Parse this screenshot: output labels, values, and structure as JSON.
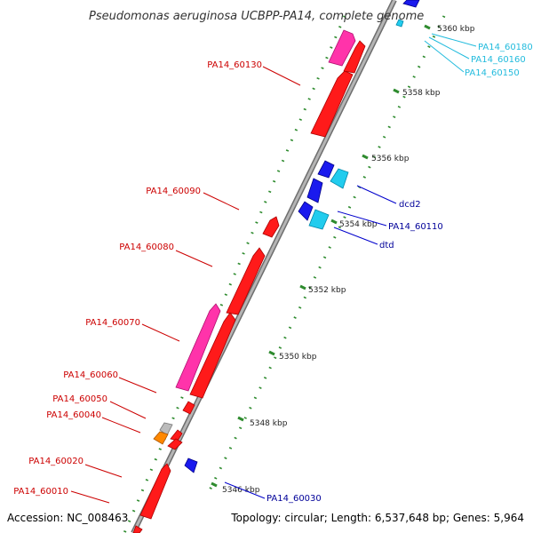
{
  "title": "Pseudomonas aeruginosa UCBPP-PA14, complete genome",
  "accession": "Accession: NC_008463",
  "summary": "Topology: circular; Length: 6,537,648 bp; Genes: 5,964",
  "kbp_labels": [
    "5360 kbp",
    "5358 kbp",
    "5356 kbp",
    "5354 kbp",
    "5352 kbp",
    "5350 kbp",
    "5348 kbp",
    "5346 kbp"
  ],
  "left_labels": [
    "PA14_60130",
    "PA14_60090",
    "PA14_60080",
    "PA14_60070",
    "PA14_60060",
    "PA14_60050",
    "PA14_60040",
    "PA14_60020",
    "PA14_60010"
  ],
  "right_labels": [
    "PA14_60180",
    "PA14_60160",
    "PA14_60150",
    "dcd2",
    "PA14_60110",
    "dtd",
    "PA14_60030"
  ],
  "colors": {
    "backbone": "#8a8a8a",
    "red": "#ff1a1a",
    "magenta": "#ff33aa",
    "blue": "#1a1aee",
    "cyan": "#22ccee",
    "orange": "#ff8800",
    "gray": "#bbbbbb",
    "tick": "#2e8b2e",
    "label_red": "#cc0000",
    "label_blue": "#000099",
    "label_cyan": "#22bbdd"
  }
}
